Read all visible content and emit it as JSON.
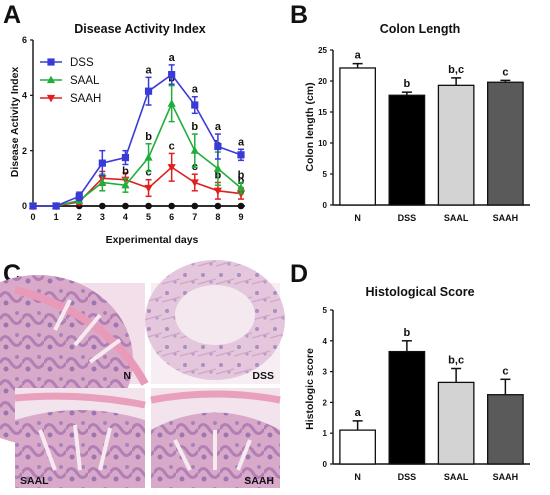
{
  "panels": {
    "A": "A",
    "B": "B",
    "C": "C",
    "D": "D"
  },
  "chart_data": [
    {
      "panel": "A",
      "type": "line",
      "title": "Disease Activity Index",
      "xlabel": "Experimental days",
      "ylabel": "Disease Activity Index",
      "xlim": [
        0,
        9
      ],
      "ylim": [
        0,
        6
      ],
      "x": [
        0,
        1,
        2,
        3,
        4,
        5,
        6,
        7,
        8,
        9
      ],
      "yticks": [
        0,
        2,
        4,
        6
      ],
      "legend_position": "top-left",
      "series": [
        {
          "name": "DSS",
          "color": "#3a3ad8",
          "marker": "square",
          "values": [
            0,
            0,
            0.35,
            1.55,
            1.75,
            4.15,
            4.75,
            3.65,
            2.15,
            1.85
          ],
          "errors": [
            0,
            0,
            0.15,
            0.45,
            0.25,
            0.5,
            0.35,
            0.3,
            0.45,
            0.2
          ],
          "letters": {
            "5": "a",
            "6": "a",
            "7": "a",
            "8": "a",
            "9": "a"
          }
        },
        {
          "name": "SAAL",
          "color": "#1fae3a",
          "marker": "triangle",
          "values": [
            0,
            0,
            0.2,
            0.85,
            0.75,
            1.75,
            3.7,
            2.0,
            1.35,
            0.65
          ],
          "errors": [
            0,
            0,
            0.1,
            0.3,
            0.25,
            0.5,
            0.65,
            0.6,
            0.6,
            0.2
          ],
          "letters": {
            "4": "b",
            "5": "b",
            "6": "b",
            "7": "b",
            "8": "b",
            "9": "b"
          }
        },
        {
          "name": "SAAH",
          "color": "#e02020",
          "marker": "triangle-down",
          "values": [
            0,
            0,
            0.15,
            1.0,
            0.95,
            0.65,
            1.4,
            0.85,
            0.55,
            0.45
          ],
          "errors": [
            0,
            0,
            0.1,
            0.25,
            0.25,
            0.3,
            0.5,
            0.3,
            0.3,
            0.2
          ],
          "letters": {
            "5": "c",
            "6": "c",
            "7": "c",
            "8": "b",
            "9": "b"
          }
        },
        {
          "name": "",
          "color": "#111111",
          "marker": "circle",
          "values": [
            0,
            0,
            0,
            0,
            0,
            0,
            0,
            0,
            0,
            0
          ],
          "errors": [
            0,
            0,
            0,
            0,
            0,
            0,
            0,
            0,
            0,
            0
          ],
          "letters": {}
        }
      ]
    },
    {
      "panel": "B",
      "type": "bar",
      "title": "Colon Length",
      "ylabel": "Colon length (cm)",
      "categories": [
        "N",
        "DSS",
        "SAAL",
        "SAAH"
      ],
      "values": [
        22.1,
        17.7,
        19.3,
        19.8
      ],
      "errors": [
        0.7,
        0.5,
        1.2,
        0.3
      ],
      "letters": [
        "a",
        "b",
        "b,c",
        "c"
      ],
      "colors": [
        "#ffffff",
        "#000000",
        "#d3d3d3",
        "#5a5a5a"
      ],
      "ylim": [
        0,
        25
      ],
      "yticks": [
        0,
        5,
        10,
        15,
        20,
        25
      ]
    },
    {
      "panel": "D",
      "type": "bar",
      "title": "Histological Score",
      "ylabel": "Histologic score",
      "categories": [
        "N",
        "DSS",
        "SAAL",
        "SAAH"
      ],
      "values": [
        1.1,
        3.65,
        2.65,
        2.25
      ],
      "errors": [
        0.3,
        0.35,
        0.45,
        0.5
      ],
      "letters": [
        "a",
        "b",
        "b,c",
        "c"
      ],
      "colors": [
        "#ffffff",
        "#000000",
        "#d3d3d3",
        "#5a5a5a"
      ],
      "ylim": [
        0,
        5
      ],
      "yticks": [
        0,
        1,
        2,
        3,
        4,
        5
      ]
    }
  ],
  "histology": {
    "panel": "C",
    "images": [
      {
        "label": "N"
      },
      {
        "label": "DSS"
      },
      {
        "label": "SAAL"
      },
      {
        "label": "SAAH"
      }
    ]
  }
}
